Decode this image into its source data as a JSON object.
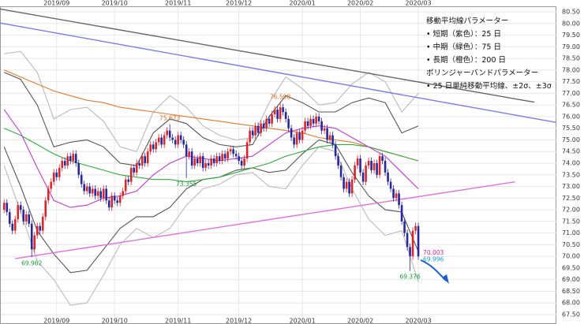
{
  "chart_data": {
    "type": "candlestick",
    "notes": [
      "移動平均線パラメーター",
      "• 短期（紫色）：25 日",
      "• 中期（緑色）：75 日",
      "• 長期（橙色）：200 日",
      "ボリンジャーバンドパラメーター",
      "• 25 日単純移動平均線、±2σ、±3σ"
    ],
    "up_color": "#d9262c",
    "down_color": "#28289e",
    "xlim": [
      -1.5,
      200
    ],
    "xticks": [
      {
        "value": 19,
        "label": "2019/09"
      },
      {
        "value": 40,
        "label": "2019/10"
      },
      {
        "value": 63,
        "label": "2019/11"
      },
      {
        "value": 85,
        "label": "2019/12"
      },
      {
        "value": 108,
        "label": "2020/01"
      },
      {
        "value": 129,
        "label": "2020/02"
      },
      {
        "value": 150,
        "label": "2020/03"
      }
    ],
    "ylim": [
      67.5,
      80.5
    ],
    "yticks": [
      {
        "value": 67.5,
        "label": "67.50"
      },
      {
        "value": 68,
        "label": "68.00"
      },
      {
        "value": 68.5,
        "label": "68.50"
      },
      {
        "value": 69,
        "label": "69.00"
      },
      {
        "value": 69.5,
        "label": "69.50"
      },
      {
        "value": 70,
        "label": "70.00"
      },
      {
        "value": 70.5,
        "label": "70.50"
      },
      {
        "value": 71,
        "label": "71.00"
      },
      {
        "value": 71.5,
        "label": "71.50"
      },
      {
        "value": 72,
        "label": "72.00"
      },
      {
        "value": 72.5,
        "label": "72.50"
      },
      {
        "value": 73,
        "label": "73.00"
      },
      {
        "value": 73.5,
        "label": "73.50"
      },
      {
        "value": 74,
        "label": "74.00"
      },
      {
        "value": 74.5,
        "label": "74.50"
      },
      {
        "value": 75,
        "label": "75.00"
      },
      {
        "value": 75.5,
        "label": "75.50"
      },
      {
        "value": 76,
        "label": "76.00"
      },
      {
        "value": 76.5,
        "label": "76.50"
      },
      {
        "value": 77,
        "label": "77.00"
      },
      {
        "value": 77.5,
        "label": "77.50"
      },
      {
        "value": 78,
        "label": "78.00"
      },
      {
        "value": 78.5,
        "label": "78.50"
      },
      {
        "value": 79,
        "label": "79.00"
      },
      {
        "value": 79.5,
        "label": "79.50"
      },
      {
        "value": 80,
        "label": "80.00"
      },
      {
        "value": 80.5,
        "label": "80.50"
      }
    ],
    "grid": true,
    "candles": [
      [
        72.0,
        72.45,
        71.85,
        72.3
      ],
      [
        72.3,
        72.45,
        71.75,
        71.9
      ],
      [
        71.9,
        72.05,
        71.25,
        71.4
      ],
      [
        71.4,
        71.55,
        70.95,
        71.1
      ],
      [
        71.1,
        71.75,
        70.95,
        71.6
      ],
      [
        71.6,
        72.35,
        71.45,
        72.2
      ],
      [
        72.2,
        72.35,
        71.85,
        72.0
      ],
      [
        72.0,
        72.15,
        71.35,
        71.5
      ],
      [
        71.5,
        71.95,
        71.35,
        71.8
      ],
      [
        71.8,
        71.95,
        71.25,
        71.4
      ],
      [
        71.4,
        71.55,
        69.962,
        70.3
      ],
      [
        70.3,
        71.05,
        70.15,
        70.9
      ],
      [
        70.9,
        71.45,
        70.75,
        71.3
      ],
      [
        71.3,
        71.45,
        70.95,
        71.1
      ],
      [
        71.1,
        71.85,
        70.95,
        71.7
      ],
      [
        71.7,
        72.55,
        71.55,
        72.4
      ],
      [
        72.4,
        73.05,
        72.25,
        72.9
      ],
      [
        72.9,
        73.35,
        72.75,
        73.2
      ],
      [
        73.2,
        73.75,
        73.05,
        73.6
      ],
      [
        73.6,
        73.75,
        73.25,
        73.4
      ],
      [
        73.4,
        73.95,
        73.25,
        73.8
      ],
      [
        73.8,
        74.25,
        73.65,
        74.1
      ],
      [
        74.1,
        74.25,
        73.75,
        73.9
      ],
      [
        73.9,
        74.45,
        73.75,
        74.3
      ],
      [
        74.3,
        74.45,
        73.95,
        74.1
      ],
      [
        74.1,
        74.55,
        73.95,
        74.4
      ],
      [
        74.4,
        74.55,
        73.85,
        74.0
      ],
      [
        74.0,
        74.15,
        73.35,
        73.5
      ],
      [
        73.5,
        73.65,
        72.95,
        73.1
      ],
      [
        73.1,
        73.25,
        72.65,
        72.8
      ],
      [
        72.8,
        73.15,
        72.65,
        73.0
      ],
      [
        73.0,
        73.15,
        72.55,
        72.7
      ],
      [
        72.7,
        73.05,
        72.55,
        72.9
      ],
      [
        72.9,
        73.05,
        72.45,
        72.6
      ],
      [
        72.6,
        72.95,
        72.45,
        72.8
      ],
      [
        72.8,
        72.95,
        72.35,
        72.5
      ],
      [
        72.5,
        73.05,
        72.35,
        72.9
      ],
      [
        72.9,
        73.05,
        72.25,
        72.4
      ],
      [
        72.4,
        72.55,
        71.95,
        72.1
      ],
      [
        72.1,
        72.75,
        71.95,
        72.6
      ],
      [
        72.6,
        72.75,
        72.25,
        72.4
      ],
      [
        72.4,
        72.55,
        72.15,
        72.3
      ],
      [
        72.3,
        72.75,
        72.15,
        72.6
      ],
      [
        72.6,
        72.95,
        72.45,
        72.8
      ],
      [
        72.8,
        73.45,
        72.65,
        73.3
      ],
      [
        73.3,
        73.45,
        73.05,
        73.2
      ],
      [
        73.2,
        73.95,
        73.05,
        73.8
      ],
      [
        73.8,
        73.95,
        73.45,
        73.6
      ],
      [
        73.6,
        74.15,
        73.45,
        74.0
      ],
      [
        74.0,
        74.15,
        73.75,
        73.9
      ],
      [
        73.9,
        74.45,
        73.75,
        74.3
      ],
      [
        74.3,
        74.45,
        73.85,
        74.0
      ],
      [
        74.0,
        74.65,
        73.85,
        74.5
      ],
      [
        74.5,
        74.95,
        74.35,
        74.8
      ],
      [
        74.8,
        74.95,
        74.45,
        74.6
      ],
      [
        74.6,
        75.05,
        74.45,
        74.9
      ],
      [
        74.9,
        75.25,
        74.75,
        75.1
      ],
      [
        75.1,
        75.25,
        74.65,
        74.8
      ],
      [
        74.8,
        75.35,
        74.65,
        75.2
      ],
      [
        75.2,
        75.55,
        75.05,
        75.4
      ],
      [
        75.4,
        75.673,
        74.95,
        75.1
      ],
      [
        75.1,
        75.25,
        74.85,
        75.0
      ],
      [
        75.0,
        75.15,
        74.65,
        74.8
      ],
      [
        74.8,
        75.35,
        74.65,
        75.2
      ],
      [
        75.2,
        75.35,
        74.85,
        75.0
      ],
      [
        75.0,
        75.15,
        74.65,
        74.8
      ],
      [
        74.8,
        74.95,
        73.355,
        74.3
      ],
      [
        74.3,
        74.65,
        74.15,
        74.5
      ],
      [
        74.5,
        74.65,
        73.75,
        73.9
      ],
      [
        73.9,
        74.35,
        73.75,
        74.2
      ],
      [
        74.2,
        74.35,
        73.85,
        74.0
      ],
      [
        74.0,
        74.45,
        73.85,
        74.3
      ],
      [
        74.3,
        74.45,
        73.65,
        73.8
      ],
      [
        73.8,
        74.15,
        73.65,
        74.0
      ],
      [
        74.0,
        74.15,
        73.75,
        73.9
      ],
      [
        73.9,
        74.35,
        73.75,
        74.2
      ],
      [
        74.2,
        74.35,
        73.85,
        74.0
      ],
      [
        74.0,
        74.45,
        73.85,
        74.3
      ],
      [
        74.3,
        74.45,
        73.95,
        74.1
      ],
      [
        74.1,
        74.55,
        73.95,
        74.4
      ],
      [
        74.4,
        74.55,
        74.05,
        74.2
      ],
      [
        74.2,
        74.65,
        74.05,
        74.5
      ],
      [
        74.5,
        74.75,
        74.35,
        74.6
      ],
      [
        74.6,
        74.75,
        74.25,
        74.4
      ],
      [
        74.4,
        74.55,
        74.15,
        74.3
      ],
      [
        74.3,
        74.45,
        73.95,
        74.1
      ],
      [
        74.1,
        74.25,
        73.75,
        73.9
      ],
      [
        73.9,
        74.35,
        73.75,
        74.2
      ],
      [
        74.2,
        75.05,
        74.05,
        74.9
      ],
      [
        74.9,
        75.55,
        74.75,
        75.4
      ],
      [
        75.4,
        75.55,
        75.05,
        75.2
      ],
      [
        75.2,
        75.75,
        75.05,
        75.6
      ],
      [
        75.6,
        75.75,
        75.15,
        75.3
      ],
      [
        75.3,
        75.85,
        75.15,
        75.7
      ],
      [
        75.7,
        75.85,
        75.35,
        75.5
      ],
      [
        75.5,
        76.05,
        75.35,
        75.9
      ],
      [
        75.9,
        76.05,
        75.55,
        75.7
      ],
      [
        75.7,
        76.25,
        75.55,
        76.1
      ],
      [
        76.1,
        76.45,
        75.95,
        76.3
      ],
      [
        76.3,
        76.45,
        75.75,
        75.9
      ],
      [
        75.9,
        76.598,
        75.75,
        76.4
      ],
      [
        76.4,
        76.55,
        76.05,
        76.2
      ],
      [
        76.2,
        76.35,
        75.75,
        75.9
      ],
      [
        75.9,
        76.05,
        75.35,
        75.5
      ],
      [
        75.5,
        75.65,
        74.95,
        75.1
      ],
      [
        75.1,
        75.25,
        74.65,
        74.8
      ],
      [
        74.8,
        75.45,
        74.65,
        75.3
      ],
      [
        75.3,
        75.45,
        74.85,
        75.0
      ],
      [
        75.0,
        75.55,
        74.85,
        75.4
      ],
      [
        75.4,
        75.95,
        75.25,
        75.8
      ],
      [
        75.8,
        75.95,
        75.45,
        75.6
      ],
      [
        75.6,
        76.05,
        75.45,
        75.9
      ],
      [
        75.9,
        76.05,
        75.55,
        75.7
      ],
      [
        75.7,
        76.15,
        75.55,
        76.0
      ],
      [
        76.0,
        76.15,
        75.65,
        75.8
      ],
      [
        75.8,
        75.95,
        75.25,
        75.4
      ],
      [
        75.4,
        75.65,
        75.25,
        75.5
      ],
      [
        75.5,
        75.65,
        74.85,
        75.0
      ],
      [
        75.0,
        75.35,
        74.85,
        75.2
      ],
      [
        75.2,
        75.35,
        74.65,
        74.8
      ],
      [
        74.8,
        74.95,
        74.15,
        74.3
      ],
      [
        74.3,
        74.45,
        73.75,
        73.9
      ],
      [
        73.9,
        74.05,
        73.25,
        73.4
      ],
      [
        73.4,
        73.55,
        72.75,
        72.9
      ],
      [
        72.9,
        73.35,
        72.75,
        73.2
      ],
      [
        73.2,
        73.35,
        72.55,
        72.7
      ],
      [
        72.7,
        73.45,
        72.55,
        73.3
      ],
      [
        73.3,
        74.05,
        73.15,
        73.9
      ],
      [
        73.9,
        74.35,
        73.75,
        74.2
      ],
      [
        74.2,
        74.35,
        73.45,
        73.6
      ],
      [
        73.6,
        73.75,
        73.05,
        73.2
      ],
      [
        73.2,
        74.05,
        73.05,
        73.9
      ],
      [
        73.9,
        74.25,
        73.75,
        74.1
      ],
      [
        74.1,
        74.25,
        73.55,
        73.7
      ],
      [
        73.7,
        74.15,
        73.55,
        74.0
      ],
      [
        74.0,
        74.15,
        73.35,
        73.5
      ],
      [
        73.5,
        74.45,
        73.35,
        74.3
      ],
      [
        74.3,
        74.45,
        73.95,
        74.1
      ],
      [
        74.1,
        74.25,
        73.45,
        73.6
      ],
      [
        73.6,
        73.75,
        73.05,
        73.2
      ],
      [
        73.2,
        73.35,
        72.75,
        72.9
      ],
      [
        72.9,
        73.05,
        72.35,
        72.5
      ],
      [
        72.5,
        72.85,
        72.35,
        72.7
      ],
      [
        72.7,
        72.85,
        72.05,
        72.2
      ],
      [
        72.2,
        72.35,
        71.35,
        71.5
      ],
      [
        71.5,
        71.65,
        70.85,
        71.0
      ],
      [
        71.0,
        71.15,
        70.25,
        70.4
      ],
      [
        70.4,
        70.55,
        69.376,
        70.0
      ],
      [
        70.0,
        71.25,
        69.85,
        71.1
      ],
      [
        71.1,
        71.45,
        70.95,
        71.3
      ],
      [
        71.3,
        71.45,
        69.85,
        70.0
      ]
    ],
    "line_x": [
      0,
      6,
      12,
      18,
      24,
      30,
      36,
      42,
      48,
      54,
      60,
      66,
      72,
      78,
      84,
      90,
      96,
      102,
      108,
      114,
      120,
      126,
      132,
      138,
      144,
      150
    ],
    "lines": [
      {
        "color": "#bbbbbb",
        "values": [
          78.7,
          78.8,
          77.9,
          75.9,
          76.3,
          76.4,
          75.8,
          74.7,
          74.5,
          76.2,
          76.9,
          76.4,
          75.6,
          75.2,
          75.0,
          75.1,
          76.6,
          77.7,
          77.2,
          76.5,
          76.6,
          77.4,
          77.9,
          77.5,
          76.2,
          77.0
        ]
      },
      {
        "color": "#bbbbbb",
        "values": [
          73.9,
          71.9,
          69.8,
          69.0,
          67.9,
          68.0,
          69.2,
          70.5,
          71.2,
          70.8,
          71.2,
          72.2,
          72.9,
          73.1,
          73.5,
          73.6,
          73.0,
          72.9,
          73.9,
          74.7,
          74.5,
          72.9,
          71.6,
          70.9,
          71.1,
          68.9
        ]
      },
      {
        "color": "#555555",
        "values": [
          77.9,
          77.6,
          76.5,
          74.7,
          74.9,
          75.0,
          74.7,
          74.0,
          73.9,
          75.3,
          75.9,
          75.7,
          75.1,
          74.8,
          74.7,
          74.8,
          76.0,
          76.9,
          76.6,
          76.2,
          76.2,
          76.6,
          76.8,
          76.6,
          75.3,
          75.6
        ]
      },
      {
        "color": "#555555",
        "values": [
          74.7,
          73.0,
          71.1,
          70.1,
          69.3,
          69.4,
          70.3,
          71.2,
          71.7,
          71.7,
          72.1,
          72.9,
          73.3,
          73.4,
          73.7,
          73.8,
          73.6,
          73.7,
          74.4,
          75.0,
          74.8,
          73.6,
          72.6,
          72.0,
          71.9,
          70.2
        ]
      },
      {
        "color": "#e07a2a",
        "values": [
          78.0,
          77.7,
          77.4,
          77.1,
          76.9,
          76.7,
          76.6,
          76.4,
          76.3,
          76.2,
          76.1,
          76.0,
          75.9,
          75.8,
          75.7,
          75.6,
          75.5,
          75.4,
          75.3,
          75.1,
          75.0,
          74.9,
          74.7,
          74.5,
          74.3,
          74.1
        ]
      },
      {
        "color": "#2fae3a",
        "values": [
          75.5,
          75.2,
          74.8,
          74.4,
          74.1,
          73.9,
          73.7,
          73.5,
          73.4,
          73.3,
          73.3,
          73.2,
          73.3,
          73.4,
          73.6,
          73.8,
          74.0,
          74.3,
          74.5,
          74.7,
          74.8,
          74.8,
          74.7,
          74.5,
          74.3,
          74.1
        ]
      },
      {
        "color": "#c03ad0",
        "values": [
          76.3,
          75.3,
          73.8,
          72.4,
          72.1,
          72.2,
          72.5,
          72.6,
          72.8,
          73.5,
          74.0,
          74.3,
          74.2,
          74.1,
          74.2,
          74.3,
          74.8,
          75.3,
          75.5,
          75.6,
          75.5,
          75.1,
          74.7,
          74.3,
          73.6,
          72.9
        ]
      }
    ],
    "trend_lines": [
      {
        "color": "#666666",
        "x": [
          -1.5,
          192
        ],
        "y": [
          80.62,
          76.62
        ]
      },
      {
        "color": "#7b7be8",
        "x": [
          -1.5,
          200
        ],
        "y": [
          80.02,
          75.75
        ]
      },
      {
        "color": "#e070e0",
        "x": [
          4,
          185
        ],
        "y": [
          69.9,
          73.2
        ]
      }
    ],
    "annotations": [
      {
        "x": 100,
        "y": 76.598,
        "color": "#e07020"
      },
      {
        "x": 60,
        "y": 75.673,
        "color": "#e07020"
      },
      {
        "x": 66,
        "y": 73.355,
        "color": "#1a9a3a"
      },
      {
        "x": 10,
        "y": 69.962,
        "color": "#1a9a3a"
      },
      {
        "x": 147,
        "y": 69.376,
        "color": "#1a9a3a"
      },
      {
        "x": 150,
        "y": 70.003,
        "color": "#d0208a"
      },
      {
        "x": 150,
        "y": 69.996,
        "color": "#1aa0d0"
      }
    ]
  }
}
